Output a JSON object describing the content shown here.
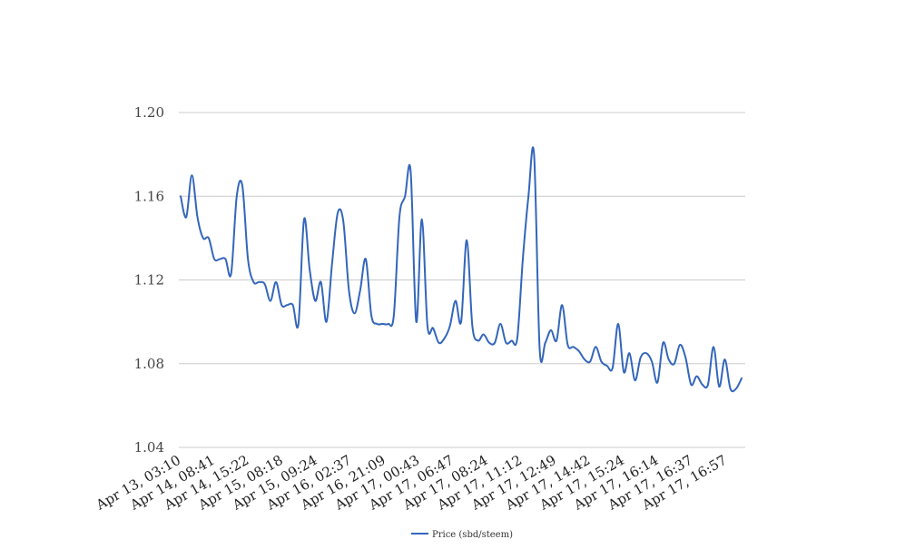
{
  "chart_data": {
    "type": "line",
    "title": "",
    "xlabel": "",
    "ylabel": "",
    "ylim": [
      1.04,
      1.2
    ],
    "y_ticks": [
      "1.04",
      "1.08",
      "1.12",
      "1.16",
      "1.20"
    ],
    "grid": true,
    "legend_position": "bottom",
    "x_tick_labels": [
      "Apr 13, 03:10",
      "Apr 14, 08:41",
      "Apr 14, 15:22",
      "Apr 15, 08:18",
      "Apr 15, 09:24",
      "Apr 16, 02:37",
      "Apr 16, 21:09",
      "Apr 17, 00:43",
      "Apr 17, 06:47",
      "Apr 17, 08:24",
      "Apr 17, 11:12",
      "Apr 17, 12:49",
      "Apr 17, 14:42",
      "Apr 17, 15:24",
      "Apr 17, 16:14",
      "Apr 17, 16:37",
      "Apr 17, 16:57"
    ],
    "series": [
      {
        "name": "Price (sbd/steem)",
        "color": "#3366bb",
        "values": [
          1.16,
          1.15,
          1.17,
          1.15,
          1.14,
          1.14,
          1.13,
          1.13,
          1.13,
          1.123,
          1.16,
          1.165,
          1.13,
          1.119,
          1.119,
          1.118,
          1.11,
          1.119,
          1.108,
          1.108,
          1.108,
          1.099,
          1.149,
          1.125,
          1.11,
          1.119,
          1.1,
          1.128,
          1.152,
          1.148,
          1.115,
          1.104,
          1.115,
          1.13,
          1.103,
          1.099,
          1.099,
          1.099,
          1.103,
          1.15,
          1.16,
          1.172,
          1.1,
          1.149,
          1.098,
          1.097,
          1.09,
          1.092,
          1.098,
          1.11,
          1.1,
          1.139,
          1.098,
          1.091,
          1.094,
          1.09,
          1.09,
          1.099,
          1.09,
          1.091,
          1.092,
          1.13,
          1.16,
          1.18,
          1.087,
          1.09,
          1.096,
          1.091,
          1.108,
          1.089,
          1.088,
          1.086,
          1.082,
          1.081,
          1.088,
          1.081,
          1.079,
          1.078,
          1.099,
          1.076,
          1.085,
          1.072,
          1.083,
          1.085,
          1.081,
          1.071,
          1.09,
          1.082,
          1.08,
          1.089,
          1.083,
          1.07,
          1.074,
          1.07,
          1.07,
          1.088,
          1.069,
          1.082,
          1.068,
          1.068,
          1.073
        ]
      }
    ]
  }
}
